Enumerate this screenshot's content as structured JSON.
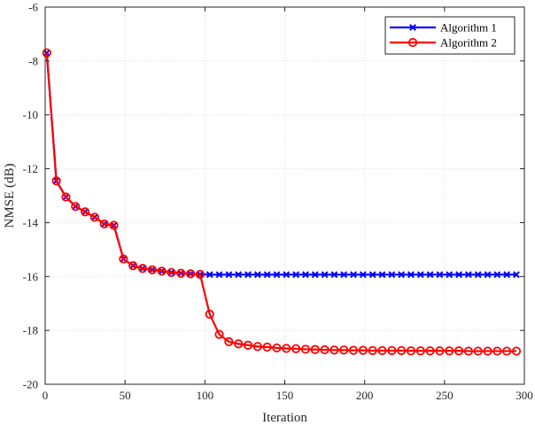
{
  "chart_data": {
    "type": "line",
    "title": "",
    "xlabel": "Iteration",
    "ylabel": "NMSE (dB)",
    "xlim": [
      0,
      300
    ],
    "ylim": [
      -20,
      -6
    ],
    "xticks": [
      0,
      50,
      100,
      150,
      200,
      250,
      300
    ],
    "yticks": [
      -20,
      -18,
      -16,
      -14,
      -12,
      -10,
      -8,
      -6
    ],
    "grid": true,
    "legend_position": "top-right",
    "x": [
      1,
      7,
      13,
      19,
      25,
      31,
      37,
      43,
      49,
      55,
      61,
      67,
      73,
      79,
      85,
      91,
      97,
      103,
      109,
      115,
      121,
      127,
      133,
      139,
      145,
      151,
      157,
      163,
      169,
      175,
      181,
      187,
      193,
      199,
      205,
      211,
      217,
      223,
      229,
      235,
      241,
      247,
      253,
      259,
      265,
      271,
      277,
      283,
      289,
      295
    ],
    "series": [
      {
        "name": "Algorithm 1",
        "color": "#0000ff",
        "marker": "x",
        "values": [
          -7.7,
          -12.45,
          -13.05,
          -13.4,
          -13.6,
          -13.8,
          -14.05,
          -14.1,
          -15.35,
          -15.6,
          -15.7,
          -15.75,
          -15.8,
          -15.85,
          -15.88,
          -15.9,
          -15.92,
          -15.93,
          -15.93,
          -15.93,
          -15.93,
          -15.93,
          -15.93,
          -15.93,
          -15.93,
          -15.93,
          -15.93,
          -15.93,
          -15.93,
          -15.93,
          -15.93,
          -15.93,
          -15.93,
          -15.93,
          -15.93,
          -15.93,
          -15.93,
          -15.93,
          -15.93,
          -15.93,
          -15.93,
          -15.93,
          -15.93,
          -15.93,
          -15.93,
          -15.93,
          -15.93,
          -15.93,
          -15.93,
          -15.93
        ]
      },
      {
        "name": "Algorithm 2",
        "color": "#ff0000",
        "marker": "o",
        "values": [
          -7.7,
          -12.45,
          -13.05,
          -13.4,
          -13.6,
          -13.8,
          -14.05,
          -14.1,
          -15.35,
          -15.6,
          -15.7,
          -15.75,
          -15.8,
          -15.85,
          -15.88,
          -15.9,
          -15.92,
          -17.4,
          -18.15,
          -18.42,
          -18.5,
          -18.55,
          -18.6,
          -18.62,
          -18.65,
          -18.67,
          -18.68,
          -18.7,
          -18.71,
          -18.72,
          -18.73,
          -18.73,
          -18.74,
          -18.74,
          -18.75,
          -18.75,
          -18.75,
          -18.75,
          -18.76,
          -18.76,
          -18.76,
          -18.76,
          -18.76,
          -18.76,
          -18.77,
          -18.77,
          -18.77,
          -18.77,
          -18.77,
          -18.77
        ]
      }
    ]
  }
}
